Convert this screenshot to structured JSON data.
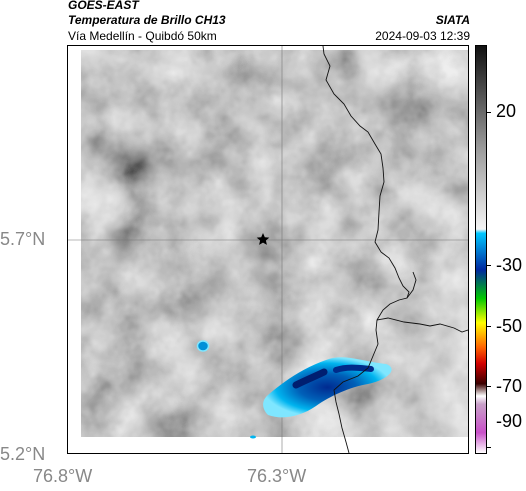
{
  "header": {
    "satellite": "GOES-EAST",
    "product": "Temperatura de Brillo CH13",
    "location": "Vía Medellín - Quibdó 50km",
    "org": "SIATA",
    "datetime": "2024-09-03 12:39"
  },
  "axes": {
    "lat_labels": [
      "5.7°N",
      "5.2°N"
    ],
    "lon_labels": [
      "76.8°W",
      "76.3°W"
    ]
  },
  "colorbar": {
    "labels": [
      "20",
      "-30",
      "-50",
      "-70",
      "-90"
    ],
    "colors": {
      "gray_top": "#111111",
      "gray_bottom": "#f4f4f4",
      "cyan": "#00c8ff",
      "blue": "#0028a0",
      "green": "#00c800",
      "yellow": "#ffff00",
      "orange": "#ff6400",
      "red": "#d20000",
      "dark": "#3a0000",
      "magenta": "#c850c8"
    }
  },
  "map": {
    "marker_icon": "star-icon",
    "background_color": "#8a8a8a",
    "cloud_color": "#0080c8"
  }
}
